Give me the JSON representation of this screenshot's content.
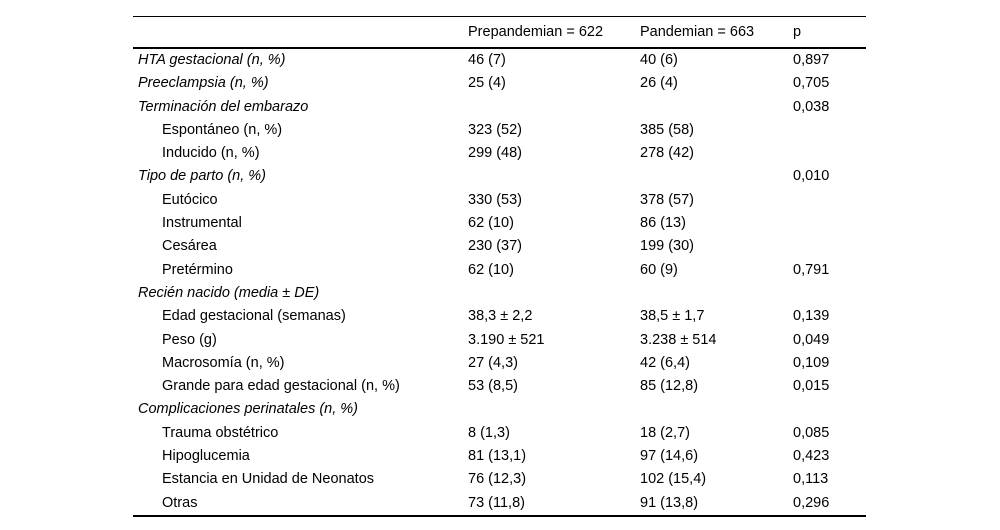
{
  "table": {
    "columns": [
      "",
      "Prepandemian = 622",
      "Pandemian = 663",
      "p"
    ],
    "rows": [
      {
        "label": "HTA gestacional (n, %)",
        "type": "category",
        "prepandemian": "46 (7)",
        "pandemian": "40 (6)",
        "p": "0,897"
      },
      {
        "label": "Preeclampsia (n, %)",
        "type": "category",
        "prepandemian": "25 (4)",
        "pandemian": "26 (4)",
        "p": "0,705"
      },
      {
        "label": "Terminación del embarazo",
        "type": "category",
        "prepandemian": "",
        "pandemian": "",
        "p": "0,038"
      },
      {
        "label": "Espontáneo (n, %)",
        "type": "sub",
        "prepandemian": "323 (52)",
        "pandemian": "385 (58)",
        "p": ""
      },
      {
        "label": "Inducido (n, %)",
        "type": "sub",
        "prepandemian": "299 (48)",
        "pandemian": "278 (42)",
        "p": ""
      },
      {
        "label": "Tipo de parto (n, %)",
        "type": "category",
        "prepandemian": "",
        "pandemian": "",
        "p": "0,010"
      },
      {
        "label": "Eutócico",
        "type": "sub",
        "prepandemian": "330 (53)",
        "pandemian": "378 (57)",
        "p": ""
      },
      {
        "label": "Instrumental",
        "type": "sub",
        "prepandemian": "62 (10)",
        "pandemian": "86 (13)",
        "p": ""
      },
      {
        "label": "Cesárea",
        "type": "sub",
        "prepandemian": "230 (37)",
        "pandemian": "199 (30)",
        "p": ""
      },
      {
        "label": "Pretérmino",
        "type": "sub",
        "prepandemian": "62 (10)",
        "pandemian": "60 (9)",
        "p": "0,791"
      },
      {
        "label": "Recién nacido (media ± DE)",
        "type": "category",
        "prepandemian": "",
        "pandemian": "",
        "p": ""
      },
      {
        "label": "Edad gestacional (semanas)",
        "type": "sub",
        "prepandemian": "38,3 ± 2,2",
        "pandemian": "38,5 ± 1,7",
        "p": "0,139"
      },
      {
        "label": "Peso (g)",
        "type": "sub",
        "prepandemian": "3.190 ± 521",
        "pandemian": "3.238 ± 514",
        "p": "0,049"
      },
      {
        "label": "Macrosomía (n, %)",
        "type": "sub",
        "prepandemian": "27 (4,3)",
        "pandemian": "42 (6,4)",
        "p": "0,109"
      },
      {
        "label": "Grande para edad gestacional (n, %)",
        "type": "sub",
        "prepandemian": "53 (8,5)",
        "pandemian": "85 (12,8)",
        "p": "0,015"
      },
      {
        "label": "Complicaciones perinatales (n, %)",
        "type": "category",
        "prepandemian": "",
        "pandemian": "",
        "p": ""
      },
      {
        "label": "Trauma obstétrico",
        "type": "sub",
        "prepandemian": "8 (1,3)",
        "pandemian": "18 (2,7)",
        "p": "0,085"
      },
      {
        "label": "Hipoglucemia",
        "type": "sub",
        "prepandemian": "81 (13,1)",
        "pandemian": "97 (14,6)",
        "p": "0,423"
      },
      {
        "label": "Estancia en Unidad de Neonatos",
        "type": "sub",
        "prepandemian": "76 (12,3)",
        "pandemian": "102 (15,4)",
        "p": "0,113"
      },
      {
        "label": "Otras",
        "type": "sub",
        "prepandemian": "73 (11,8)",
        "pandemian": "91 (13,8)",
        "p": "0,296"
      }
    ]
  },
  "colors": {
    "text": "#000000",
    "rule": "#000000",
    "background": "#ffffff"
  }
}
